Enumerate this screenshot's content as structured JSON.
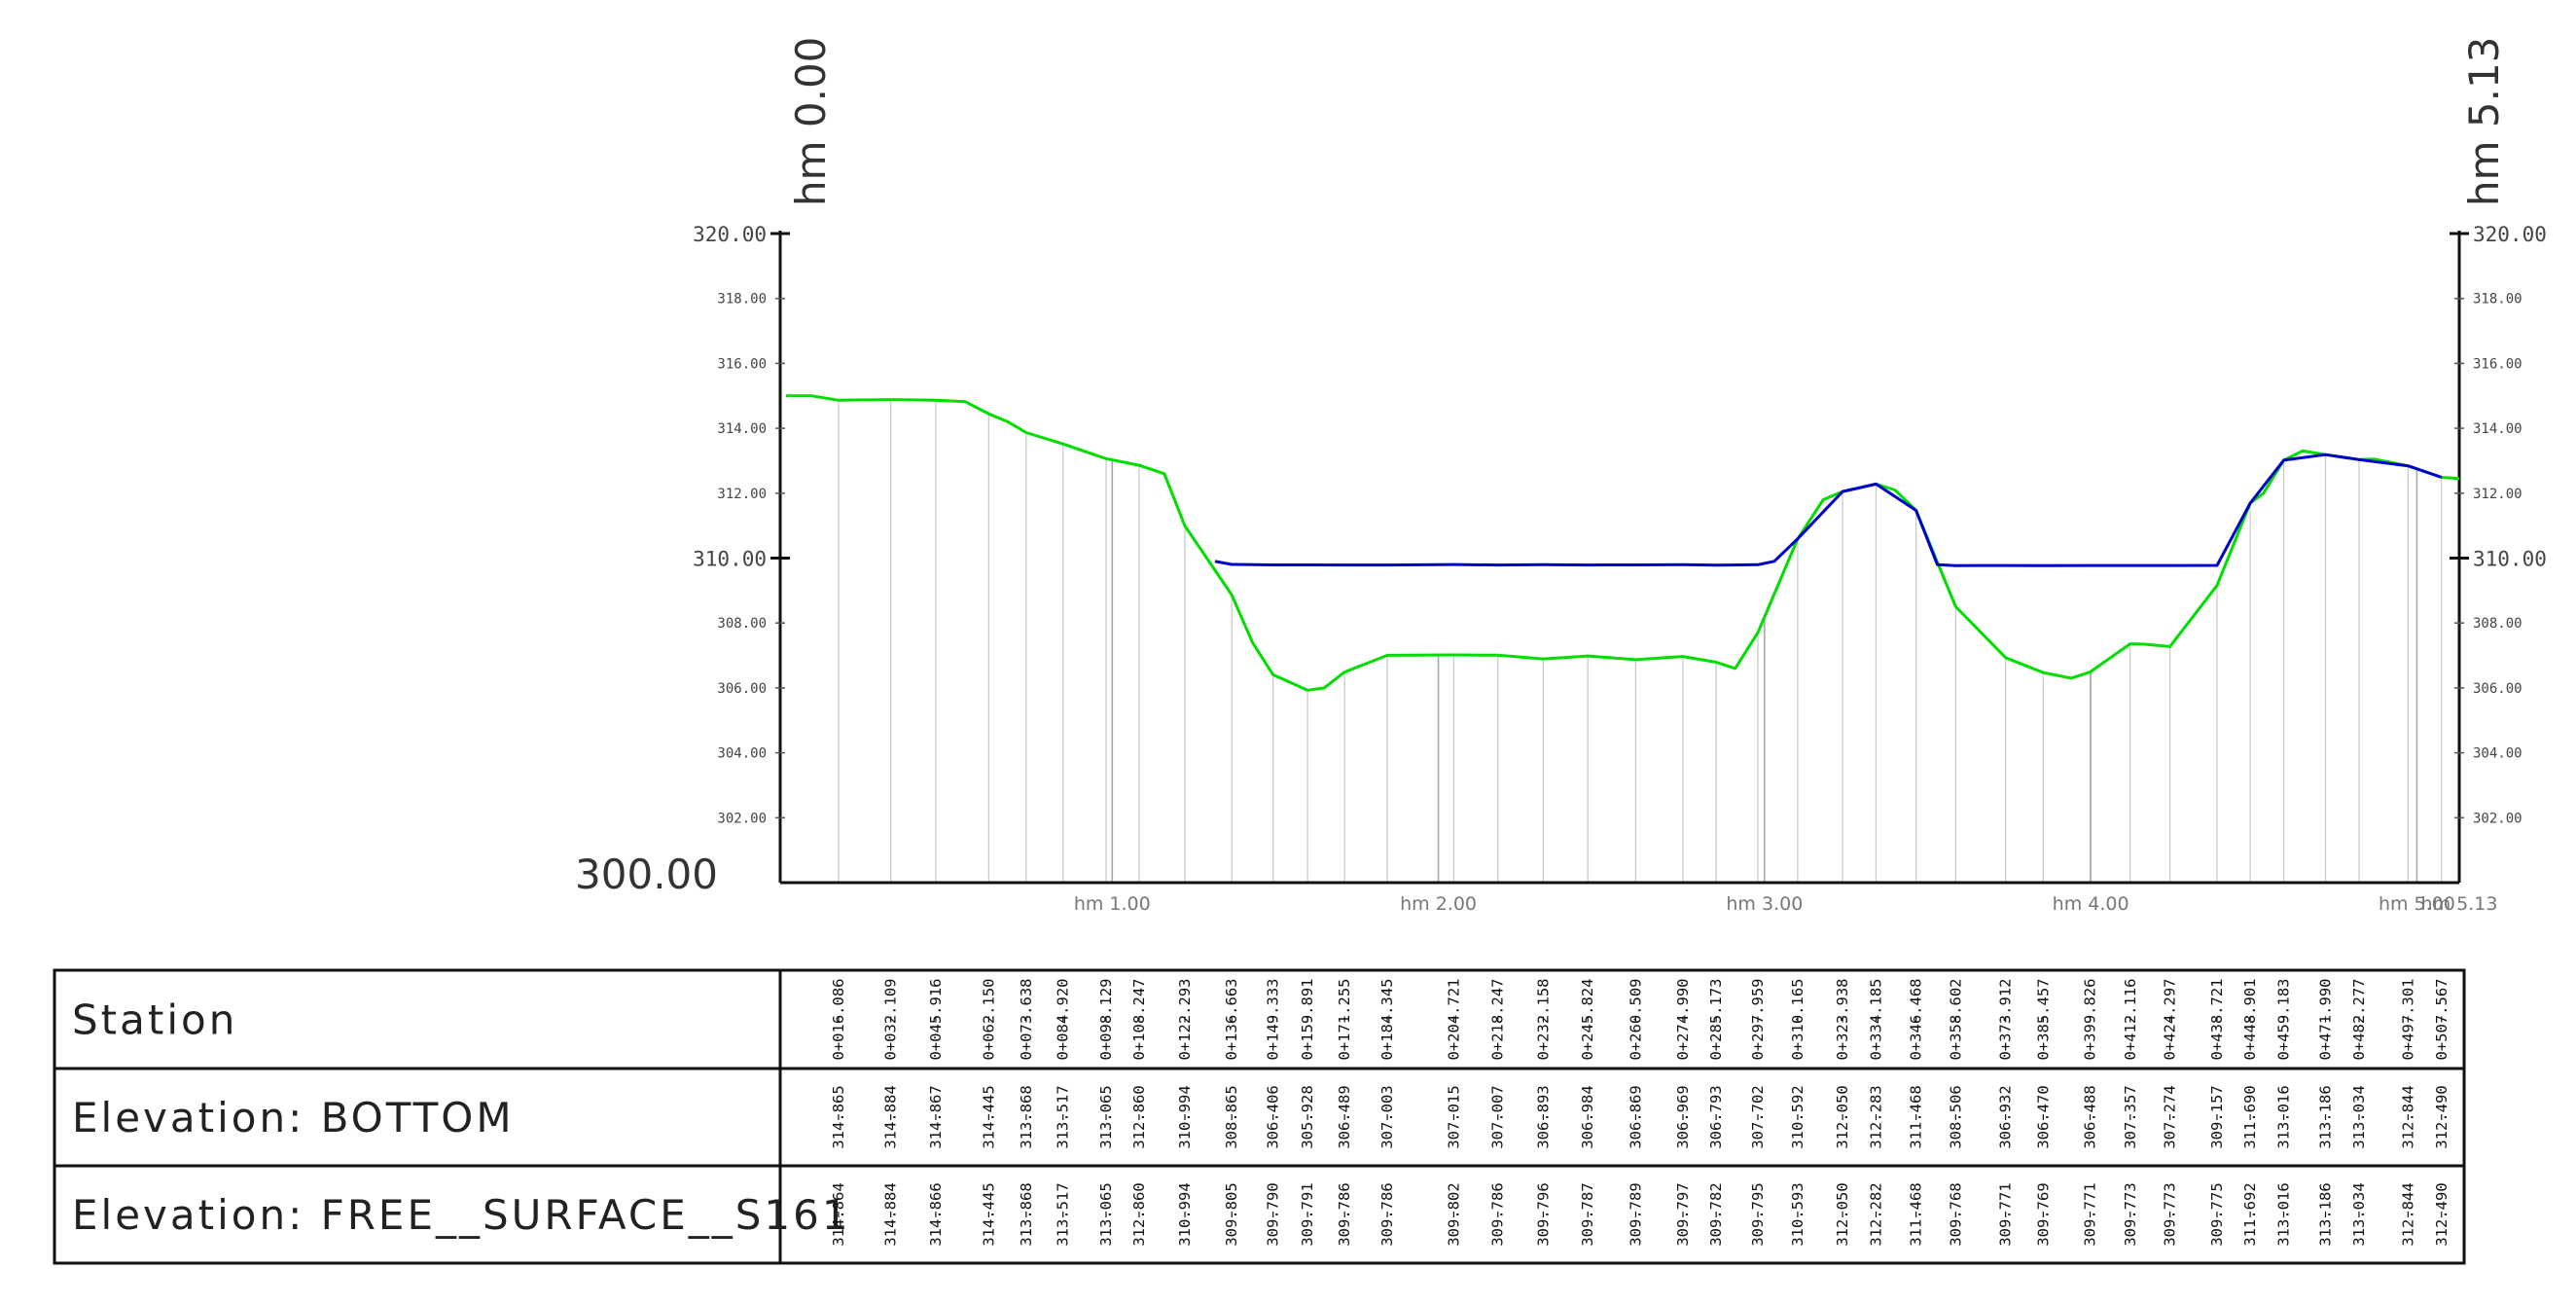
{
  "chart_data": {
    "type": "line",
    "title": "",
    "xlabel": "",
    "ylabel": "",
    "x_units": "m",
    "xlim": [
      0,
      513
    ],
    "ylim": [
      300,
      320
    ],
    "y_ticks_major": [
      "320.00",
      "310.00"
    ],
    "y_ticks_minor": [
      "318.00",
      "316.00",
      "314.00",
      "312.00",
      "308.00",
      "306.00",
      "304.00",
      "302.00"
    ],
    "y_base_label": "300.00",
    "x_ticks": [
      {
        "x": 100,
        "label": "hm 1.00"
      },
      {
        "x": 200,
        "label": "hm 2.00"
      },
      {
        "x": 300,
        "label": "hm 3.00"
      },
      {
        "x": 400,
        "label": "hm 4.00"
      },
      {
        "x": 500,
        "label": "hm 5.00"
      },
      {
        "x": 513,
        "label": "hm 5.13"
      }
    ],
    "top_labels": [
      {
        "x": 0,
        "label": "hm  0.00"
      },
      {
        "x": 513,
        "label": "hm  5.13"
      }
    ],
    "grid": "vertical-lines-at-stations",
    "legend": "none",
    "colors": {
      "bottom": "#00dd00",
      "free_surface": "#0000cc",
      "grid": "#c8c8c8",
      "axis": "#111111"
    },
    "series": [
      {
        "name": "BOTTOM",
        "color": "#00dd00",
        "points": [
          [
            0,
            315.0
          ],
          [
            8,
            315.0
          ],
          [
            16.086,
            314.865
          ],
          [
            32.109,
            314.884
          ],
          [
            45.916,
            314.867
          ],
          [
            55,
            314.82
          ],
          [
            62.15,
            314.445
          ],
          [
            68,
            314.2
          ],
          [
            73.638,
            313.868
          ],
          [
            84.92,
            313.517
          ],
          [
            98.129,
            313.065
          ],
          [
            108.247,
            312.86
          ],
          [
            116,
            312.6
          ],
          [
            122.293,
            310.994
          ],
          [
            136.663,
            308.865
          ],
          [
            143,
            307.4
          ],
          [
            149.333,
            306.406
          ],
          [
            159.891,
            305.928
          ],
          [
            165,
            306.0
          ],
          [
            171.255,
            306.489
          ],
          [
            184.345,
            307.003
          ],
          [
            204.721,
            307.015
          ],
          [
            218.247,
            307.007
          ],
          [
            232.158,
            306.893
          ],
          [
            245.824,
            306.984
          ],
          [
            260.509,
            306.869
          ],
          [
            274.99,
            306.969
          ],
          [
            285.173,
            306.793
          ],
          [
            291,
            306.6
          ],
          [
            297.959,
            307.702
          ],
          [
            310.165,
            310.592
          ],
          [
            318,
            311.8
          ],
          [
            323.938,
            312.05
          ],
          [
            334.185,
            312.283
          ],
          [
            340,
            312.1
          ],
          [
            346.468,
            311.468
          ],
          [
            358.602,
            308.506
          ],
          [
            373.912,
            306.932
          ],
          [
            385.457,
            306.47
          ],
          [
            394,
            306.3
          ],
          [
            399.826,
            306.488
          ],
          [
            412.116,
            307.357
          ],
          [
            416,
            307.35
          ],
          [
            424.297,
            307.274
          ],
          [
            438.721,
            309.157
          ],
          [
            448.901,
            311.69
          ],
          [
            453,
            312.0
          ],
          [
            459.183,
            313.016
          ],
          [
            465,
            313.3
          ],
          [
            471.99,
            313.186
          ],
          [
            482.277,
            313.034
          ],
          [
            487,
            313.05
          ],
          [
            497.301,
            312.844
          ],
          [
            507.567,
            312.49
          ],
          [
            513,
            312.45
          ]
        ]
      },
      {
        "name": "FREE_SURFACE_S161",
        "color": "#0000cc",
        "points": [
          [
            131.5,
            309.9
          ],
          [
            136.663,
            309.805
          ],
          [
            149.333,
            309.79
          ],
          [
            159.891,
            309.791
          ],
          [
            171.255,
            309.786
          ],
          [
            184.345,
            309.786
          ],
          [
            204.721,
            309.802
          ],
          [
            218.247,
            309.786
          ],
          [
            232.158,
            309.796
          ],
          [
            245.824,
            309.787
          ],
          [
            260.509,
            309.789
          ],
          [
            274.99,
            309.797
          ],
          [
            285.173,
            309.782
          ],
          [
            297.959,
            309.795
          ],
          [
            303,
            309.9
          ],
          [
            310.165,
            310.593
          ],
          [
            323.938,
            312.05
          ],
          [
            334.185,
            312.282
          ],
          [
            346.468,
            311.468
          ],
          [
            353,
            309.8
          ],
          [
            358.602,
            309.768
          ],
          [
            373.912,
            309.771
          ],
          [
            385.457,
            309.769
          ],
          [
            399.826,
            309.771
          ],
          [
            412.116,
            309.773
          ],
          [
            424.297,
            309.773
          ],
          [
            438.721,
            309.775
          ],
          [
            448.901,
            311.692
          ],
          [
            459.183,
            313.016
          ],
          [
            471.99,
            313.186
          ],
          [
            482.277,
            313.034
          ],
          [
            497.301,
            312.844
          ],
          [
            507.567,
            312.49
          ]
        ]
      }
    ],
    "table": {
      "row_labels": [
        "Station",
        "Elevation: BOTTOM",
        "Elevation: FREE__SURFACE__S161"
      ],
      "columns": [
        {
          "x": 16.086,
          "station": "0+016.086",
          "bottom": "314.865",
          "surface": "314.864"
        },
        {
          "x": 32.109,
          "station": "0+032.109",
          "bottom": "314.884",
          "surface": "314.884"
        },
        {
          "x": 45.916,
          "station": "0+045.916",
          "bottom": "314.867",
          "surface": "314.866"
        },
        {
          "x": 62.15,
          "station": "0+062.150",
          "bottom": "314.445",
          "surface": "314.445"
        },
        {
          "x": 73.638,
          "station": "0+073.638",
          "bottom": "313.868",
          "surface": "313.868"
        },
        {
          "x": 84.92,
          "station": "0+084.920",
          "bottom": "313.517",
          "surface": "313.517"
        },
        {
          "x": 98.129,
          "station": "0+098.129",
          "bottom": "313.065",
          "surface": "313.065"
        },
        {
          "x": 108.247,
          "station": "0+108.247",
          "bottom": "312.860",
          "surface": "312.860"
        },
        {
          "x": 122.293,
          "station": "0+122.293",
          "bottom": "310.994",
          "surface": "310.994"
        },
        {
          "x": 136.663,
          "station": "0+136.663",
          "bottom": "308.865",
          "surface": "309.805"
        },
        {
          "x": 149.333,
          "station": "0+149.333",
          "bottom": "306.406",
          "surface": "309.790"
        },
        {
          "x": 159.891,
          "station": "0+159.891",
          "bottom": "305.928",
          "surface": "309.791"
        },
        {
          "x": 171.255,
          "station": "0+171.255",
          "bottom": "306.489",
          "surface": "309.786"
        },
        {
          "x": 184.345,
          "station": "0+184.345",
          "bottom": "307.003",
          "surface": "309.786"
        },
        {
          "x": 204.721,
          "station": "0+204.721",
          "bottom": "307.015",
          "surface": "309.802"
        },
        {
          "x": 218.247,
          "station": "0+218.247",
          "bottom": "307.007",
          "surface": "309.786"
        },
        {
          "x": 232.158,
          "station": "0+232.158",
          "bottom": "306.893",
          "surface": "309.796"
        },
        {
          "x": 245.824,
          "station": "0+245.824",
          "bottom": "306.984",
          "surface": "309.787"
        },
        {
          "x": 260.509,
          "station": "0+260.509",
          "bottom": "306.869",
          "surface": "309.789"
        },
        {
          "x": 274.99,
          "station": "0+274.990",
          "bottom": "306.969",
          "surface": "309.797"
        },
        {
          "x": 285.173,
          "station": "0+285.173",
          "bottom": "306.793",
          "surface": "309.782"
        },
        {
          "x": 297.959,
          "station": "0+297.959",
          "bottom": "307.702",
          "surface": "309.795"
        },
        {
          "x": 310.165,
          "station": "0+310.165",
          "bottom": "310.592",
          "surface": "310.593"
        },
        {
          "x": 323.938,
          "station": "0+323.938",
          "bottom": "312.050",
          "surface": "312.050"
        },
        {
          "x": 334.185,
          "station": "0+334.185",
          "bottom": "312.283",
          "surface": "312.282"
        },
        {
          "x": 346.468,
          "station": "0+346.468",
          "bottom": "311.468",
          "surface": "311.468"
        },
        {
          "x": 358.602,
          "station": "0+358.602",
          "bottom": "308.506",
          "surface": "309.768"
        },
        {
          "x": 373.912,
          "station": "0+373.912",
          "bottom": "306.932",
          "surface": "309.771"
        },
        {
          "x": 385.457,
          "station": "0+385.457",
          "bottom": "306.470",
          "surface": "309.769"
        },
        {
          "x": 399.826,
          "station": "0+399.826",
          "bottom": "306.488",
          "surface": "309.771"
        },
        {
          "x": 412.116,
          "station": "0+412.116",
          "bottom": "307.357",
          "surface": "309.773"
        },
        {
          "x": 424.297,
          "station": "0+424.297",
          "bottom": "307.274",
          "surface": "309.773"
        },
        {
          "x": 438.721,
          "station": "0+438.721",
          "bottom": "309.157",
          "surface": "309.775"
        },
        {
          "x": 448.901,
          "station": "0+448.901",
          "bottom": "311.690",
          "surface": "311.692"
        },
        {
          "x": 459.183,
          "station": "0+459.183",
          "bottom": "313.016",
          "surface": "313.016"
        },
        {
          "x": 471.99,
          "station": "0+471.990",
          "bottom": "313.186",
          "surface": "313.186"
        },
        {
          "x": 482.277,
          "station": "0+482.277",
          "bottom": "313.034",
          "surface": "313.034"
        },
        {
          "x": 497.301,
          "station": "0+497.301",
          "bottom": "312.844",
          "surface": "312.844"
        },
        {
          "x": 507.567,
          "station": "0+507.567",
          "bottom": "312.490",
          "surface": "312.490"
        }
      ]
    }
  }
}
